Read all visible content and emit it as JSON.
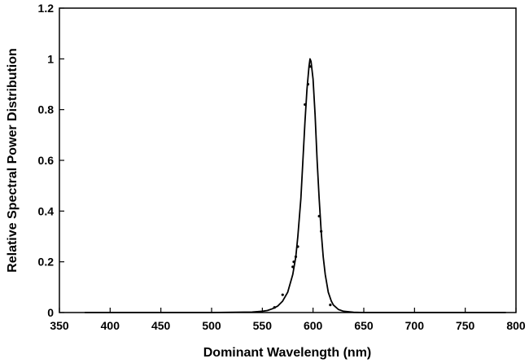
{
  "chart_data": {
    "type": "line",
    "title": "",
    "xlabel": "Dominant Wavelength (nm)",
    "ylabel": "Relative Spectral Power Distribution",
    "xlim": [
      350,
      800
    ],
    "ylim": [
      0,
      1.2
    ],
    "x_ticks": [
      "350",
      "400",
      "450",
      "500",
      "550",
      "600",
      "650",
      "700",
      "750",
      "800"
    ],
    "y_ticks": [
      "0",
      "0.2",
      "0.4",
      "0.6",
      "0.8",
      "1",
      "1.2"
    ],
    "grid": false,
    "legend": "none",
    "line_color": "#000000",
    "series": [
      {
        "x": [
          375,
          400,
          450,
          500,
          540,
          550,
          555,
          560,
          565,
          570,
          575,
          580,
          583,
          585,
          588,
          590,
          592,
          594,
          596,
          597,
          598,
          600,
          602,
          604,
          606,
          608,
          610,
          612,
          615,
          618,
          620,
          625,
          630,
          640,
          650,
          700,
          750,
          790
        ],
        "y": [
          0,
          0,
          0,
          0,
          0.002,
          0.005,
          0.008,
          0.015,
          0.025,
          0.045,
          0.08,
          0.15,
          0.22,
          0.3,
          0.45,
          0.6,
          0.75,
          0.88,
          0.97,
          1.0,
          0.99,
          0.92,
          0.78,
          0.6,
          0.45,
          0.32,
          0.22,
          0.15,
          0.08,
          0.045,
          0.03,
          0.012,
          0.005,
          0.001,
          0,
          0,
          0,
          0
        ]
      }
    ],
    "markers": {
      "x": [
        562,
        570,
        580,
        581,
        583,
        585,
        592,
        595,
        597,
        606,
        608,
        617
      ],
      "y": [
        0.02,
        0.07,
        0.18,
        0.2,
        0.22,
        0.26,
        0.82,
        0.9,
        0.97,
        0.38,
        0.32,
        0.03
      ]
    }
  }
}
